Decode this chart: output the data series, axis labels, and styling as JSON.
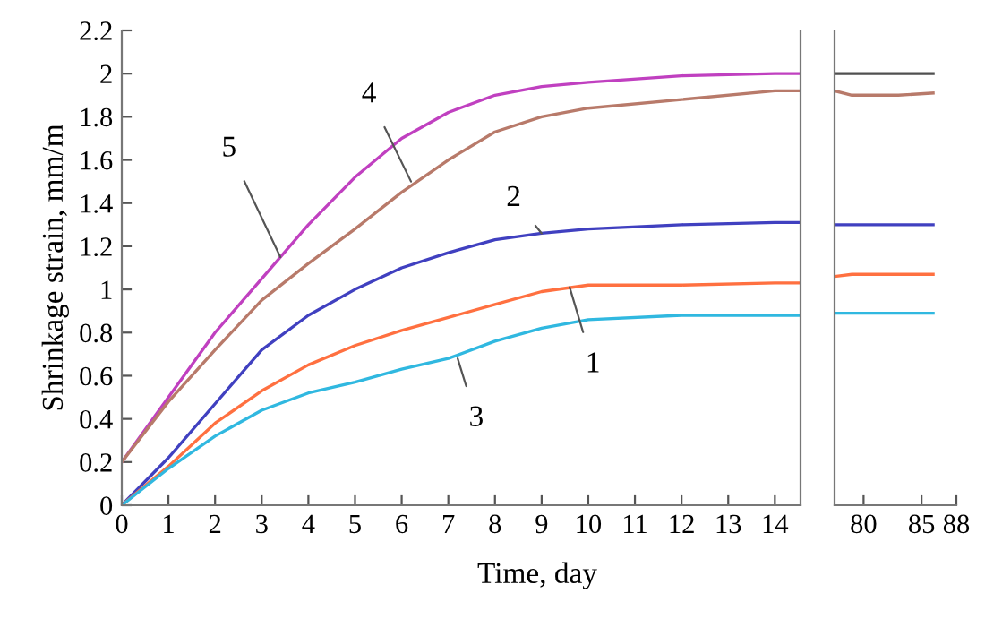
{
  "chart_data": [
    {
      "type": "line",
      "xlabel": "Time, day",
      "ylabel": "Shrinkage strain, mm/m",
      "xlim": [
        0,
        14.55
      ],
      "xticks": [
        0,
        1,
        2,
        3,
        4,
        5,
        6,
        7,
        8,
        9,
        10,
        11,
        12,
        13,
        14
      ],
      "ylim": [
        0,
        2.2
      ],
      "yticks": [
        0,
        0.2,
        0.4,
        0.6,
        0.8,
        1,
        1.2,
        1.4,
        1.6,
        1.8,
        2,
        2.2
      ],
      "grid": false,
      "legend": false,
      "marker": "none",
      "line_style": "solid",
      "x": [
        0,
        1,
        2,
        3,
        4,
        5,
        6,
        7,
        8,
        9,
        10,
        12,
        14,
        14.5
      ],
      "series": [
        {
          "color": "#c040c0",
          "values": [
            0.2,
            0.5,
            0.8,
            1.05,
            1.3,
            1.52,
            1.7,
            1.82,
            1.9,
            1.94,
            1.96,
            1.99,
            2.0,
            2.0
          ]
        },
        {
          "color": "#b87a6a",
          "values": [
            0.2,
            0.48,
            0.72,
            0.95,
            1.12,
            1.28,
            1.45,
            1.6,
            1.73,
            1.8,
            1.84,
            1.88,
            1.92,
            1.92
          ]
        },
        {
          "color": "#4040c0",
          "values": [
            0,
            0.22,
            0.47,
            0.72,
            0.88,
            1.0,
            1.1,
            1.17,
            1.23,
            1.26,
            1.28,
            1.3,
            1.31,
            1.31
          ]
        },
        {
          "color": "#ff7040",
          "values": [
            0,
            0.18,
            0.38,
            0.53,
            0.65,
            0.74,
            0.81,
            0.87,
            0.93,
            0.99,
            1.02,
            1.02,
            1.03,
            1.03
          ]
        },
        {
          "color": "#30b8e0",
          "values": [
            0,
            0.17,
            0.32,
            0.44,
            0.52,
            0.57,
            0.63,
            0.68,
            0.76,
            0.82,
            0.86,
            0.88,
            0.88,
            0.88
          ]
        }
      ],
      "annotations": [
        {
          "text": "5",
          "x": 3.4,
          "y": 1.15
        },
        {
          "text": "4",
          "x": 6.2,
          "y": 1.5
        },
        {
          "text": "2",
          "x": 9.0,
          "y": 1.26
        },
        {
          "text": "1",
          "x": 9.6,
          "y": 1.01
        },
        {
          "text": "3",
          "x": 7.2,
          "y": 0.68
        }
      ]
    },
    {
      "type": "line",
      "xlim": [
        77.5,
        88
      ],
      "xticks": [
        80,
        85,
        88
      ],
      "ylim": [
        0,
        2.2
      ],
      "tick_labels": "x",
      "grid": false,
      "legend": false,
      "marker": "none",
      "line_style": "solid",
      "x": [
        77.5,
        79,
        80,
        83,
        86
      ],
      "series": [
        {
          "color": "#505050",
          "values": [
            2.0,
            2.0,
            2.0,
            2.0,
            2.0
          ]
        },
        {
          "color": "#b87a6a",
          "values": [
            1.92,
            1.9,
            1.9,
            1.9,
            1.91
          ]
        },
        {
          "color": "#4040c0",
          "values": [
            1.3,
            1.3,
            1.3,
            1.3,
            1.3
          ]
        },
        {
          "color": "#ff7040",
          "values": [
            1.06,
            1.07,
            1.07,
            1.07,
            1.07
          ]
        },
        {
          "color": "#30b8e0",
          "values": [
            0.89,
            0.89,
            0.89,
            0.89,
            0.89
          ]
        }
      ]
    }
  ]
}
